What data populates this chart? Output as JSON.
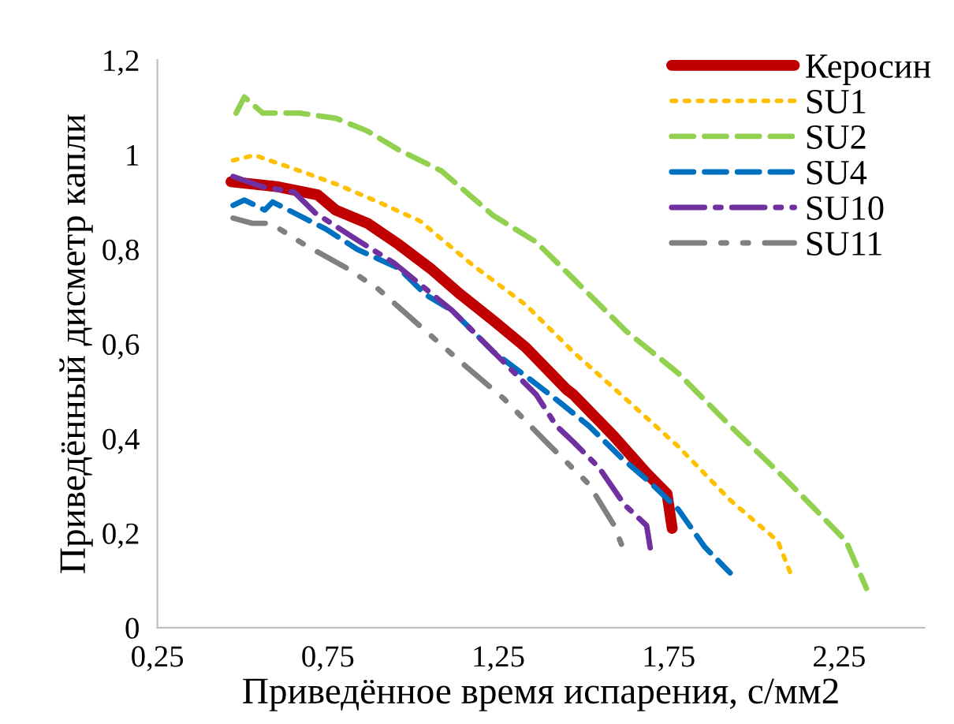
{
  "chart_data": {
    "type": "line",
    "xlabel": "Приведённое время испарения, с/мм2",
    "ylabel": "Приведённый дисметр капли",
    "xlim": [
      0.25,
      2.5
    ],
    "xticks": [
      {
        "value": 0.25,
        "label": "0,25"
      },
      {
        "value": 0.75,
        "label": "0,75"
      },
      {
        "value": 1.25,
        "label": "1,25"
      },
      {
        "value": 1.75,
        "label": "1,75"
      },
      {
        "value": 2.25,
        "label": "2,25"
      }
    ],
    "ylim": [
      0,
      1.2
    ],
    "yticks": [
      0,
      {
        "value": 0.2,
        "label": "0,2"
      },
      {
        "value": 0.4,
        "label": "0,4"
      },
      {
        "value": 0.6,
        "label": "0,6"
      },
      {
        "value": 0.8,
        "label": "0,8"
      },
      1,
      {
        "value": 1.2,
        "label": "1,2"
      }
    ],
    "grid": false,
    "legend": "top right",
    "marker": "none",
    "series": [
      {
        "name": "Керосин",
        "color": "#c00000",
        "line_style": "solid",
        "x": [
          0.466,
          0.605,
          0.72,
          0.773,
          0.866,
          0.958,
          1.05,
          1.14,
          1.236,
          1.33,
          1.45,
          1.47,
          1.59,
          1.685,
          1.745,
          1.76
        ],
        "values": [
          0.943,
          0.932,
          0.915,
          0.883,
          0.855,
          0.81,
          0.76,
          0.704,
          0.649,
          0.593,
          0.504,
          0.493,
          0.404,
          0.327,
          0.283,
          0.21
        ]
      },
      {
        "name": "SU1",
        "color": "#ffc000",
        "line_style": "dotted",
        "x": [
          0.472,
          0.535,
          0.667,
          0.774,
          0.898,
          1.02,
          1.176,
          1.33,
          1.47,
          1.625,
          1.778,
          1.93,
          2.07,
          2.11
        ],
        "values": [
          0.988,
          0.999,
          0.966,
          0.938,
          0.9,
          0.86,
          0.766,
          0.683,
          0.583,
          0.483,
          0.383,
          0.27,
          0.183,
          0.11
        ]
      },
      {
        "name": "SU2",
        "color": "#92d050",
        "line_style": "dashed",
        "x": [
          0.481,
          0.505,
          0.559,
          0.667,
          0.774,
          0.866,
          0.958,
          1.083,
          1.236,
          1.36,
          1.47,
          1.625,
          1.778,
          1.93,
          2.09,
          2.18,
          2.27,
          2.33
        ],
        "values": [
          1.088,
          1.122,
          1.088,
          1.088,
          1.077,
          1.05,
          1.01,
          0.966,
          0.871,
          0.816,
          0.738,
          0.627,
          0.538,
          0.427,
          0.316,
          0.25,
          0.183,
          0.083
        ]
      },
      {
        "name": "SU4",
        "color": "#0070c0",
        "line_style": "dashed",
        "x": [
          0.472,
          0.505,
          0.565,
          0.588,
          0.667,
          0.744,
          0.836,
          0.958,
          1.037,
          1.114,
          1.236,
          1.36,
          1.44,
          1.515,
          1.61,
          1.7,
          1.778,
          1.855,
          1.93
        ],
        "values": [
          0.893,
          0.904,
          0.883,
          0.9,
          0.871,
          0.843,
          0.8,
          0.76,
          0.704,
          0.671,
          0.583,
          0.516,
          0.471,
          0.427,
          0.36,
          0.304,
          0.25,
          0.171,
          0.116
        ]
      },
      {
        "name": "SU10",
        "color": "#7030a0",
        "line_style": "dashdot",
        "x": [
          0.472,
          0.559,
          0.651,
          0.713,
          0.82,
          0.944,
          1.114,
          1.207,
          1.361,
          1.42,
          1.47,
          1.546,
          1.62,
          1.685,
          1.7
        ],
        "values": [
          0.954,
          0.932,
          0.921,
          0.877,
          0.827,
          0.771,
          0.671,
          0.604,
          0.493,
          0.427,
          0.393,
          0.338,
          0.26,
          0.216,
          0.15
        ]
      },
      {
        "name": "SU11",
        "color": "#808080",
        "line_style": "dashdotdot",
        "x": [
          0.472,
          0.528,
          0.582,
          0.681,
          0.806,
          0.898,
          1.02,
          1.143,
          1.268,
          1.39,
          1.515,
          1.59,
          1.62
        ],
        "values": [
          0.866,
          0.855,
          0.855,
          0.81,
          0.76,
          0.716,
          0.638,
          0.56,
          0.483,
          0.393,
          0.304,
          0.216,
          0.16
        ]
      }
    ]
  }
}
